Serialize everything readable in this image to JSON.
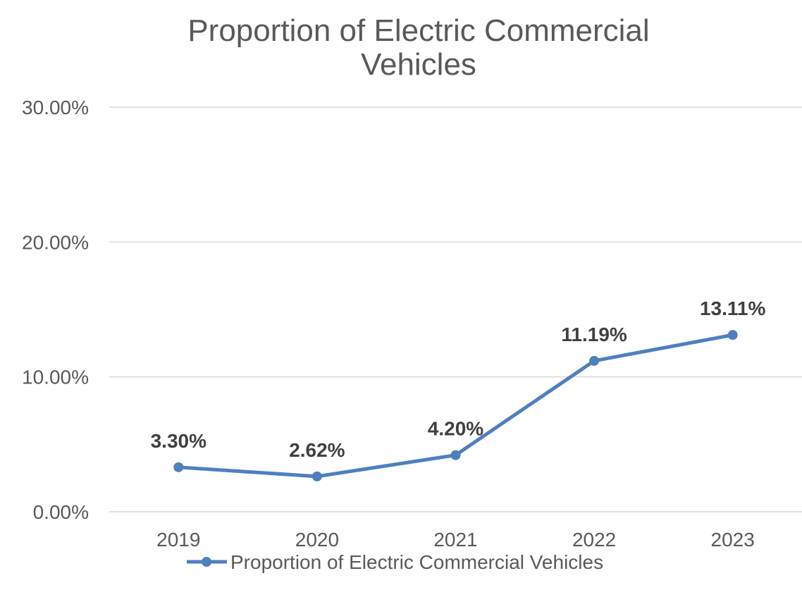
{
  "chart_data": {
    "type": "line",
    "title_lines": [
      "Proportion of Electric Commercial",
      "Vehicles"
    ],
    "categories": [
      "2019",
      "2020",
      "2021",
      "2022",
      "2023"
    ],
    "series": [
      {
        "name": "Proportion of Electric Commercial Vehicles",
        "values": [
          3.3,
          2.62,
          4.2,
          11.19,
          13.11
        ],
        "labels": [
          "3.30%",
          "2.62%",
          "4.20%",
          "11.19%",
          "13.11%"
        ],
        "color": "#4f7fbf"
      }
    ],
    "yticks": [
      "0.00%",
      "10.00%",
      "20.00%",
      "30.00%"
    ],
    "ytick_values": [
      0,
      10,
      20,
      30
    ],
    "ylim": [
      0,
      30
    ],
    "grid": true,
    "legend_position": "bottom"
  }
}
